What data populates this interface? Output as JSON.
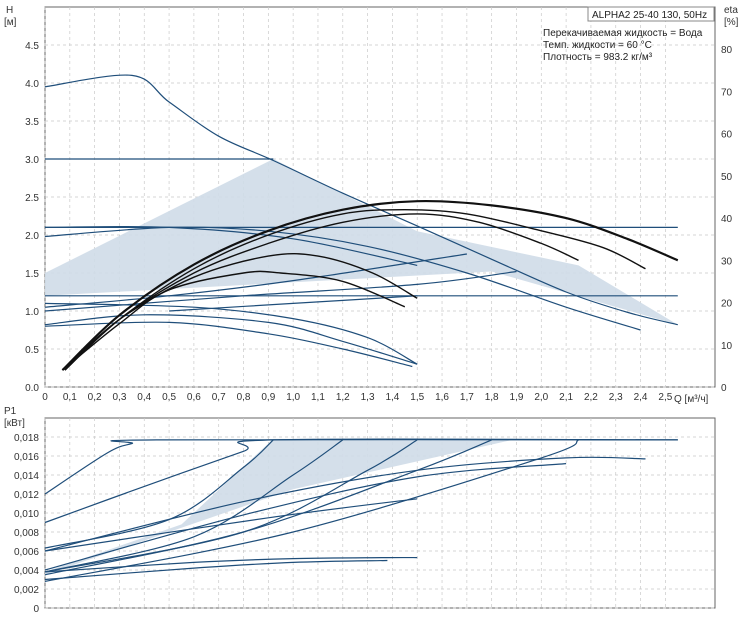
{
  "chart_data": [
    {
      "type": "line",
      "title_box": "ALPHA2 25-40 130, 50Hz",
      "info_lines": [
        "Перекачиваемая жидкость = Вода",
        "Темп. жидкости = 60 °C",
        "Плотность = 983.2 кг/м³"
      ],
      "ylabel": [
        "H",
        "[м]"
      ],
      "y2label": [
        "eta",
        "[%]"
      ],
      "xlabel": "Q [м³/ч]",
      "xlim": [
        0,
        2.7
      ],
      "ylim": [
        0,
        5.0
      ],
      "y2lim": [
        0,
        90
      ],
      "x_ticks": [
        "0",
        "0,1",
        "0,2",
        "0,3",
        "0,4",
        "0,5",
        "0,6",
        "0,7",
        "0,8",
        "0,9",
        "1,0",
        "1,1",
        "1,2",
        "1,3",
        "1,4",
        "1,5",
        "1,6",
        "1,7",
        "1,8",
        "1,9",
        "2,0",
        "2,1",
        "2,2",
        "2,3",
        "2,4",
        "2,5"
      ],
      "y_ticks": [
        "0.0",
        "0.5",
        "1.0",
        "1.5",
        "2.0",
        "2.5",
        "3.0",
        "3.5",
        "4.0",
        "4.5"
      ],
      "y2_ticks": [
        "0",
        "10",
        "20",
        "30",
        "40",
        "50",
        "60",
        "70",
        "80"
      ],
      "grid": true,
      "band_color": "#cfdbe8",
      "line_color": "#1f4e7a",
      "band": [
        [
          0,
          1.5
        ],
        [
          0.92,
          3.0
        ],
        [
          1.5,
          2.05
        ],
        [
          2.15,
          1.6
        ],
        [
          2.55,
          0.82
        ],
        [
          1.8,
          1.52
        ],
        [
          0,
          1.2
        ]
      ],
      "series": [
        {
          "role": "head",
          "x": [
            0,
            0.35,
            0.5,
            0.7,
            0.92,
            1.2,
            1.5,
            1.8,
            2.1,
            2.35,
            2.55
          ],
          "y": [
            3.95,
            4.1,
            3.75,
            3.3,
            2.98,
            2.55,
            2.12,
            1.68,
            1.25,
            0.98,
            0.82
          ]
        },
        {
          "role": "head",
          "x": [
            0,
            0.92
          ],
          "y": [
            3.0,
            3.0
          ]
        },
        {
          "role": "head",
          "x": [
            0,
            0.5,
            0.9,
            1.3,
            1.7,
            2.1,
            2.4
          ],
          "y": [
            1.98,
            2.1,
            2.05,
            1.85,
            1.5,
            1.05,
            0.75
          ]
        },
        {
          "role": "head",
          "x": [
            0,
            0.6,
            1.0,
            1.3,
            1.5
          ],
          "y": [
            1.1,
            1.05,
            0.9,
            0.65,
            0.3
          ]
        },
        {
          "role": "head",
          "x": [
            0,
            0.5,
            0.9,
            1.2,
            1.48
          ],
          "y": [
            0.8,
            0.85,
            0.7,
            0.5,
            0.27
          ]
        },
        {
          "role": "head",
          "x": [
            0,
            0.4,
            0.9,
            1.2,
            1.5
          ],
          "y": [
            0.82,
            0.95,
            0.85,
            0.6,
            0.3
          ]
        },
        {
          "role": "head",
          "x": [
            0,
            0.5,
            1.0,
            1.5
          ],
          "y": [
            2.1,
            2.1,
            1.95,
            1.6
          ]
        },
        {
          "role": "head",
          "x": [
            0,
            2.55
          ],
          "y": [
            1.2,
            1.2
          ]
        },
        {
          "role": "head",
          "x": [
            0,
            2.55
          ],
          "y": [
            2.1,
            2.1
          ]
        },
        {
          "role": "setting",
          "x": [
            0,
            0.5,
            1.0,
            1.7
          ],
          "y": [
            1.05,
            1.2,
            1.4,
            1.75
          ]
        },
        {
          "role": "setting",
          "x": [
            0,
            0.8,
            1.5,
            1.9
          ],
          "y": [
            1.0,
            1.2,
            1.35,
            1.52
          ]
        },
        {
          "role": "setting",
          "x": [
            0.5,
            1.0,
            1.5
          ],
          "y": [
            1.0,
            1.1,
            1.2
          ]
        },
        {
          "role": "eta",
          "x": [
            0.07,
            0.3,
            0.6,
            0.9,
            1.2,
            1.5,
            1.8,
            2.1,
            2.35,
            2.55
          ],
          "y": [
            4,
            17,
            29,
            37,
            42,
            44,
            43,
            40,
            35,
            30
          ]
        },
        {
          "role": "eta",
          "x": [
            0.08,
            0.3,
            0.6,
            0.9,
            1.2,
            1.45,
            1.7,
            2.0,
            2.25,
            2.42
          ],
          "y": [
            4,
            16,
            28,
            36,
            41,
            42,
            41,
            37,
            33,
            28
          ]
        },
        {
          "role": "eta",
          "x": [
            0.08,
            0.3,
            0.6,
            0.9,
            1.2,
            1.5,
            1.75,
            2.0,
            2.15
          ],
          "y": [
            4,
            16,
            27,
            34,
            39,
            41,
            39,
            34,
            30
          ]
        },
        {
          "role": "eta",
          "x": [
            0.07,
            0.3,
            0.6,
            0.9,
            1.1,
            1.32,
            1.5
          ],
          "y": [
            4,
            16,
            26,
            31,
            31,
            27,
            21
          ]
        },
        {
          "role": "eta",
          "x": [
            0.07,
            0.3,
            0.5,
            0.8,
            0.95,
            1.2,
            1.45
          ],
          "y": [
            4,
            15,
            23,
            27,
            27,
            25,
            19
          ]
        }
      ]
    },
    {
      "type": "line",
      "ylabel": [
        "P1",
        "[кВт]"
      ],
      "xlim": [
        0,
        2.7
      ],
      "ylim": [
        0,
        0.02
      ],
      "y_ticks": [
        "0",
        "0,002",
        "0,004",
        "0,006",
        "0,008",
        "0,010",
        "0,012",
        "0,014",
        "0,016",
        "0,018"
      ],
      "grid": true,
      "band": [
        [
          0,
          0.0038
        ],
        [
          0.55,
          0.0088
        ],
        [
          0.92,
          0.0178
        ],
        [
          1.9,
          0.0178
        ],
        [
          1.0,
          0.0125
        ],
        [
          0,
          0.0035
        ]
      ],
      "series": [
        {
          "x": [
            0,
            0.25,
            0.35,
            0.45,
            2.55
          ],
          "y": [
            0.012,
            0.0163,
            0.0173,
            0.0177,
            0.0177
          ]
        },
        {
          "x": [
            0,
            0.4,
            0.8,
            0.92,
            2.55
          ],
          "y": [
            0.009,
            0.0128,
            0.0165,
            0.0177,
            0.0177
          ]
        },
        {
          "x": [
            0,
            0.5,
            0.8,
            0.92
          ],
          "y": [
            0.0063,
            0.0093,
            0.0148,
            0.0177
          ]
        },
        {
          "x": [
            0,
            0.6,
            1.0,
            1.2
          ],
          "y": [
            0.0038,
            0.0075,
            0.014,
            0.0177
          ]
        },
        {
          "x": [
            0,
            0.8,
            1.3,
            1.5
          ],
          "y": [
            0.0038,
            0.008,
            0.0145,
            0.0177
          ]
        },
        {
          "x": [
            0,
            0.8,
            1.5,
            1.8
          ],
          "y": [
            0.0035,
            0.008,
            0.0145,
            0.0177
          ]
        },
        {
          "x": [
            0,
            1.0,
            2.0,
            2.15
          ],
          "y": [
            0.0028,
            0.008,
            0.0158,
            0.0177
          ]
        },
        {
          "x": [
            0,
            0.8,
            1.5,
            2.1,
            2.42
          ],
          "y": [
            0.006,
            0.0112,
            0.0145,
            0.0158,
            0.0157
          ]
        },
        {
          "x": [
            0,
            0.8,
            1.5,
            2.1
          ],
          "y": [
            0.004,
            0.0098,
            0.0138,
            0.0152
          ]
        },
        {
          "x": [
            0,
            0.6,
            1.0,
            1.38,
            1.5
          ],
          "y": [
            0.0038,
            0.0048,
            0.0052,
            0.0053,
            0.0053
          ]
        },
        {
          "x": [
            0,
            0.6,
            1.0,
            1.38
          ],
          "y": [
            0.003,
            0.0042,
            0.0048,
            0.005
          ]
        },
        {
          "x": [
            0,
            0.9,
            1.5
          ],
          "y": [
            0.006,
            0.0095,
            0.0115
          ]
        }
      ]
    }
  ]
}
